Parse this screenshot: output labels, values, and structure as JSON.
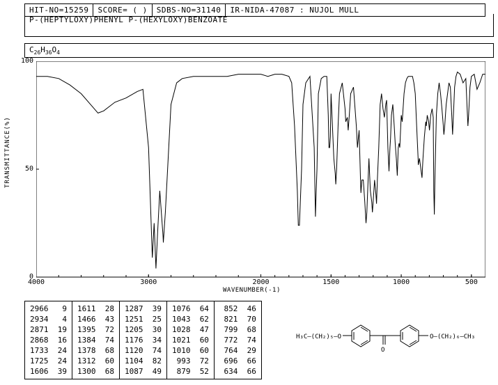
{
  "header": {
    "hit_no": "HIT-NO=15259",
    "score": "SCORE=  (  )",
    "sdbs_no": "SDBS-NO=31140",
    "ir_info": "IR-NIDA-47087 : NUJOL MULL"
  },
  "subtitle": "P-(HEPTYLOXY)PHENYL P-(HEXYLOXY)BENZOATE",
  "formula_html": "C<sub>26</sub>H<sub>36</sub>O<sub>4</sub>",
  "chart": {
    "type": "line",
    "xlim": [
      4000,
      400
    ],
    "ylim": [
      0,
      100
    ],
    "xticks": [
      4000,
      3000,
      2000,
      1500,
      1000,
      500
    ],
    "yticks": [
      0,
      50,
      100
    ],
    "xlabel": "WAVENUMBER(-1)",
    "ylabel": "TRANSMITTANCE(%)",
    "line_color": "#000000",
    "background_color": "#ffffff",
    "tick_fontsize": 10,
    "label_fontsize": 9,
    "spectrum": [
      [
        4000,
        93
      ],
      [
        3900,
        93
      ],
      [
        3800,
        92
      ],
      [
        3700,
        89
      ],
      [
        3600,
        85
      ],
      [
        3500,
        79
      ],
      [
        3450,
        76
      ],
      [
        3400,
        77
      ],
      [
        3350,
        79
      ],
      [
        3300,
        81
      ],
      [
        3200,
        83
      ],
      [
        3100,
        86
      ],
      [
        3050,
        87
      ],
      [
        3000,
        60
      ],
      [
        2966,
        9
      ],
      [
        2950,
        25
      ],
      [
        2934,
        4
      ],
      [
        2920,
        20
      ],
      [
        2900,
        40
      ],
      [
        2871,
        19
      ],
      [
        2868,
        16
      ],
      [
        2850,
        30
      ],
      [
        2800,
        80
      ],
      [
        2750,
        90
      ],
      [
        2700,
        92
      ],
      [
        2600,
        93
      ],
      [
        2500,
        93
      ],
      [
        2400,
        93
      ],
      [
        2300,
        93
      ],
      [
        2200,
        94
      ],
      [
        2100,
        94
      ],
      [
        2050,
        94
      ],
      [
        2000,
        94
      ],
      [
        1950,
        93
      ],
      [
        1900,
        94
      ],
      [
        1850,
        94
      ],
      [
        1800,
        93
      ],
      [
        1780,
        90
      ],
      [
        1760,
        70
      ],
      [
        1740,
        40
      ],
      [
        1733,
        24
      ],
      [
        1725,
        24
      ],
      [
        1710,
        50
      ],
      [
        1700,
        80
      ],
      [
        1680,
        90
      ],
      [
        1650,
        93
      ],
      [
        1620,
        60
      ],
      [
        1611,
        28
      ],
      [
        1606,
        39
      ],
      [
        1600,
        50
      ],
      [
        1590,
        85
      ],
      [
        1570,
        92
      ],
      [
        1550,
        93
      ],
      [
        1530,
        93
      ],
      [
        1520,
        75
      ],
      [
        1515,
        60
      ],
      [
        1510,
        60
      ],
      [
        1505,
        65
      ],
      [
        1500,
        85
      ],
      [
        1490,
        70
      ],
      [
        1480,
        55
      ],
      [
        1470,
        48
      ],
      [
        1466,
        43
      ],
      [
        1460,
        50
      ],
      [
        1450,
        70
      ],
      [
        1440,
        85
      ],
      [
        1420,
        90
      ],
      [
        1400,
        78
      ],
      [
        1395,
        72
      ],
      [
        1384,
        74
      ],
      [
        1378,
        68
      ],
      [
        1370,
        75
      ],
      [
        1360,
        85
      ],
      [
        1340,
        88
      ],
      [
        1320,
        70
      ],
      [
        1312,
        60
      ],
      [
        1300,
        68
      ],
      [
        1290,
        45
      ],
      [
        1287,
        39
      ],
      [
        1280,
        45
      ],
      [
        1270,
        45
      ],
      [
        1260,
        35
      ],
      [
        1251,
        25
      ],
      [
        1245,
        30
      ],
      [
        1230,
        55
      ],
      [
        1220,
        40
      ],
      [
        1210,
        35
      ],
      [
        1205,
        30
      ],
      [
        1200,
        35
      ],
      [
        1190,
        45
      ],
      [
        1180,
        38
      ],
      [
        1176,
        34
      ],
      [
        1170,
        45
      ],
      [
        1160,
        60
      ],
      [
        1150,
        80
      ],
      [
        1140,
        85
      ],
      [
        1130,
        78
      ],
      [
        1120,
        74
      ],
      [
        1110,
        80
      ],
      [
        1104,
        82
      ],
      [
        1095,
        60
      ],
      [
        1087,
        49
      ],
      [
        1080,
        60
      ],
      [
        1076,
        64
      ],
      [
        1070,
        75
      ],
      [
        1060,
        80
      ],
      [
        1050,
        70
      ],
      [
        1043,
        62
      ],
      [
        1035,
        55
      ],
      [
        1028,
        47
      ],
      [
        1021,
        60
      ],
      [
        1015,
        62
      ],
      [
        1010,
        60
      ],
      [
        1000,
        75
      ],
      [
        993,
        72
      ],
      [
        985,
        80
      ],
      [
        980,
        85
      ],
      [
        970,
        90
      ],
      [
        960,
        92
      ],
      [
        950,
        93
      ],
      [
        940,
        93
      ],
      [
        930,
        93
      ],
      [
        920,
        93
      ],
      [
        910,
        90
      ],
      [
        900,
        85
      ],
      [
        890,
        70
      ],
      [
        880,
        55
      ],
      [
        879,
        52
      ],
      [
        870,
        55
      ],
      [
        860,
        50
      ],
      [
        852,
        46
      ],
      [
        845,
        55
      ],
      [
        835,
        65
      ],
      [
        825,
        72
      ],
      [
        821,
        70
      ],
      [
        815,
        75
      ],
      [
        805,
        72
      ],
      [
        799,
        68
      ],
      [
        790,
        75
      ],
      [
        780,
        78
      ],
      [
        772,
        74
      ],
      [
        768,
        40
      ],
      [
        764,
        29
      ],
      [
        760,
        45
      ],
      [
        750,
        75
      ],
      [
        740,
        85
      ],
      [
        730,
        90
      ],
      [
        720,
        85
      ],
      [
        710,
        78
      ],
      [
        700,
        70
      ],
      [
        696,
        66
      ],
      [
        690,
        70
      ],
      [
        680,
        80
      ],
      [
        670,
        85
      ],
      [
        660,
        90
      ],
      [
        650,
        88
      ],
      [
        640,
        75
      ],
      [
        634,
        66
      ],
      [
        628,
        75
      ],
      [
        620,
        88
      ],
      [
        610,
        93
      ],
      [
        600,
        95
      ],
      [
        580,
        94
      ],
      [
        560,
        90
      ],
      [
        540,
        92
      ],
      [
        525,
        70
      ],
      [
        520,
        75
      ],
      [
        510,
        88
      ],
      [
        500,
        93
      ],
      [
        480,
        94
      ],
      [
        460,
        87
      ],
      [
        440,
        90
      ],
      [
        420,
        94
      ],
      [
        400,
        94
      ]
    ]
  },
  "table": {
    "columns": [
      [
        "2966   9",
        "2934   4",
        "2871  19",
        "2868  16",
        "1733  24",
        "1725  24",
        "1606  39"
      ],
      [
        "1611  28",
        "1466  43",
        "1395  72",
        "1384  74",
        "1378  68",
        "1312  60",
        "1300  68"
      ],
      [
        "1287  39",
        "1251  25",
        "1205  30",
        "1176  34",
        "1120  74",
        "1104  82",
        "1087  49"
      ],
      [
        "1076  64",
        "1043  62",
        "1028  47",
        "1021  60",
        "1010  60",
        " 993  72",
        " 879  52"
      ],
      [
        " 852  46",
        " 821  70",
        " 799  68",
        " 772  74",
        " 764  29",
        " 696  66",
        " 634  66"
      ]
    ]
  },
  "structure_labels": {
    "left": "H₃C—(CH₂)₅—O",
    "mid": "C—O",
    "right": "O—(CH₂)₆—CH₃"
  }
}
